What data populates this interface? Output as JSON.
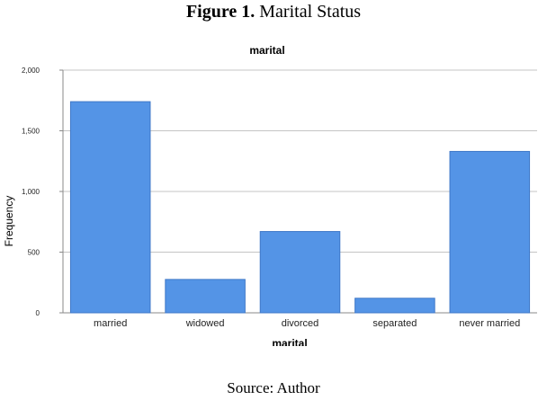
{
  "figure": {
    "number_label": "Figure 1.",
    "title_text": "Marital Status",
    "source": "Source: Author"
  },
  "chart_data": {
    "type": "bar",
    "title": "marital",
    "xlabel": "marital",
    "ylabel": "Frequency",
    "categories": [
      "married",
      "widowed",
      "divorced",
      "separated",
      "never married"
    ],
    "values": [
      1740,
      275,
      670,
      120,
      1330
    ],
    "ylim": [
      0,
      2000
    ],
    "yticks": [
      0,
      500,
      1000,
      1500,
      2000
    ],
    "ytick_labels": [
      "0",
      "500",
      "1,000",
      "1,500",
      "2,000"
    ],
    "grid": true,
    "bar_color": "#5494e6",
    "bar_edge_color": "#3f78c8"
  }
}
